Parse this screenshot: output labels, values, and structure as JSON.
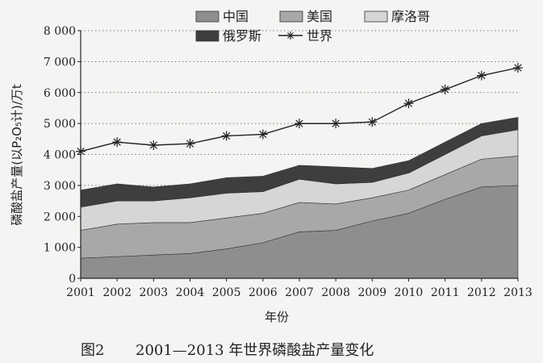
{
  "chart_data": {
    "type": "area",
    "stacked": true,
    "x": [
      "2001",
      "2002",
      "2003",
      "2004",
      "2005",
      "2006",
      "2007",
      "2008",
      "2009",
      "2010",
      "2011",
      "2012",
      "2013"
    ],
    "series": [
      {
        "name": "中国",
        "color": "#8e8e8e",
        "values": [
          650,
          700,
          750,
          800,
          950,
          1150,
          1500,
          1550,
          1850,
          2100,
          2550,
          2950,
          3000
        ]
      },
      {
        "name": "美国",
        "color": "#a8a8a8",
        "values": [
          900,
          1050,
          1050,
          1000,
          1000,
          950,
          950,
          850,
          750,
          750,
          800,
          900,
          950
        ]
      },
      {
        "name": "摩洛哥",
        "color": "#d6d6d6",
        "values": [
          750,
          750,
          700,
          800,
          800,
          700,
          750,
          650,
          500,
          550,
          650,
          750,
          850
        ]
      },
      {
        "name": "俄罗斯",
        "color": "#3e3e3e",
        "values": [
          550,
          550,
          450,
          450,
          500,
          500,
          450,
          550,
          450,
          400,
          400,
          400,
          400
        ]
      }
    ],
    "line_series": {
      "name": "世界",
      "values": [
        4100,
        4400,
        4300,
        4350,
        4600,
        4650,
        5000,
        5000,
        5050,
        5650,
        6100,
        6550,
        6800
      ]
    },
    "ylabel": "磷酸盐产量(以P₂O₅计)/万t",
    "xlabel": "年份",
    "ylim": [
      0,
      8000
    ],
    "yticks": [
      0,
      1000,
      2000,
      3000,
      4000,
      5000,
      6000,
      7000,
      8000
    ],
    "ytick_labels": [
      "0",
      "1 000",
      "2 000",
      "3 000",
      "4 000",
      "5 000",
      "6 000",
      "7 000",
      "8 000"
    ],
    "grid": "horizontal dotted",
    "legend_position": "top-center"
  },
  "caption": {
    "label": "图2",
    "text": "2001—2013 年世界磷酸盐产量变化"
  }
}
